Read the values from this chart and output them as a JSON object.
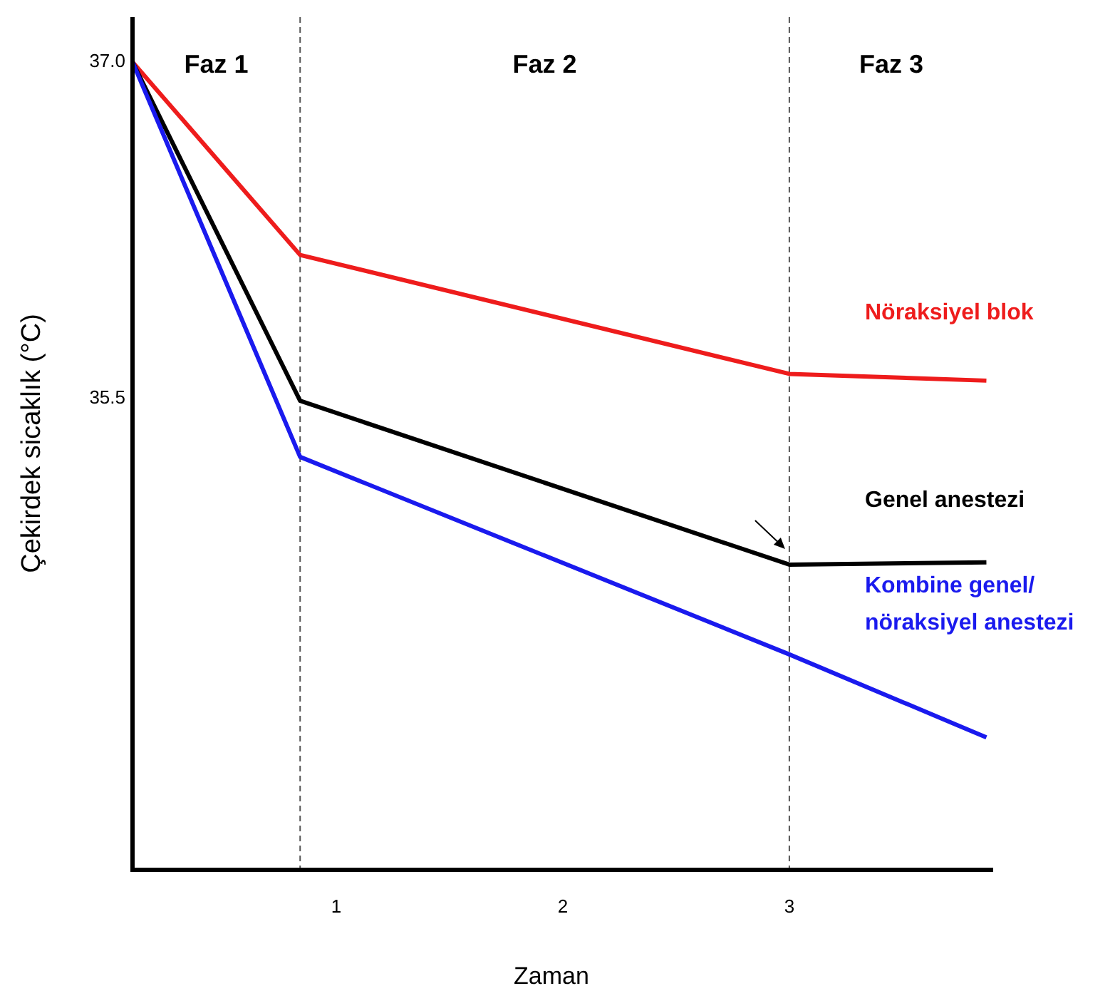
{
  "chart_data": {
    "type": "line",
    "xlabel": "Zaman",
    "ylabel": "Çekirdek sicaklık (°C)",
    "xlim": [
      0.1,
      3.9
    ],
    "xticks": [
      1,
      2,
      3
    ],
    "ylim": [
      33.4,
      37.2
    ],
    "yticks": [
      {
        "value": 37,
        "label": "37.0"
      },
      {
        "value": 35.5,
        "label": "35.5"
      }
    ],
    "x": [
      0.1,
      0.84,
      3.0,
      3.87
    ],
    "series": [
      {
        "name": "Nöraksiyel blok",
        "color": "#ee1c1c",
        "values": [
          37.0,
          36.14,
          35.61,
          35.58
        ]
      },
      {
        "name": "Genel anestezi",
        "color": "#000000",
        "values": [
          37.0,
          35.49,
          34.76,
          34.77
        ]
      },
      {
        "name": "Kombine genel/ nöraksiyel anestezi",
        "color": "#1a1aee",
        "values": [
          37.0,
          35.24,
          34.36,
          33.99
        ]
      }
    ],
    "ref_lines": [
      {
        "axis": "x",
        "value": 0.84,
        "line_style": "dashed",
        "color": "#555555"
      },
      {
        "axis": "x",
        "value": 3.0,
        "line_style": "dashed",
        "color": "#555555"
      }
    ],
    "annotations": [
      "Faz 1",
      "Faz 2",
      "Faz 3"
    ],
    "grid": false,
    "marker": "none",
    "line_style": "solid"
  }
}
